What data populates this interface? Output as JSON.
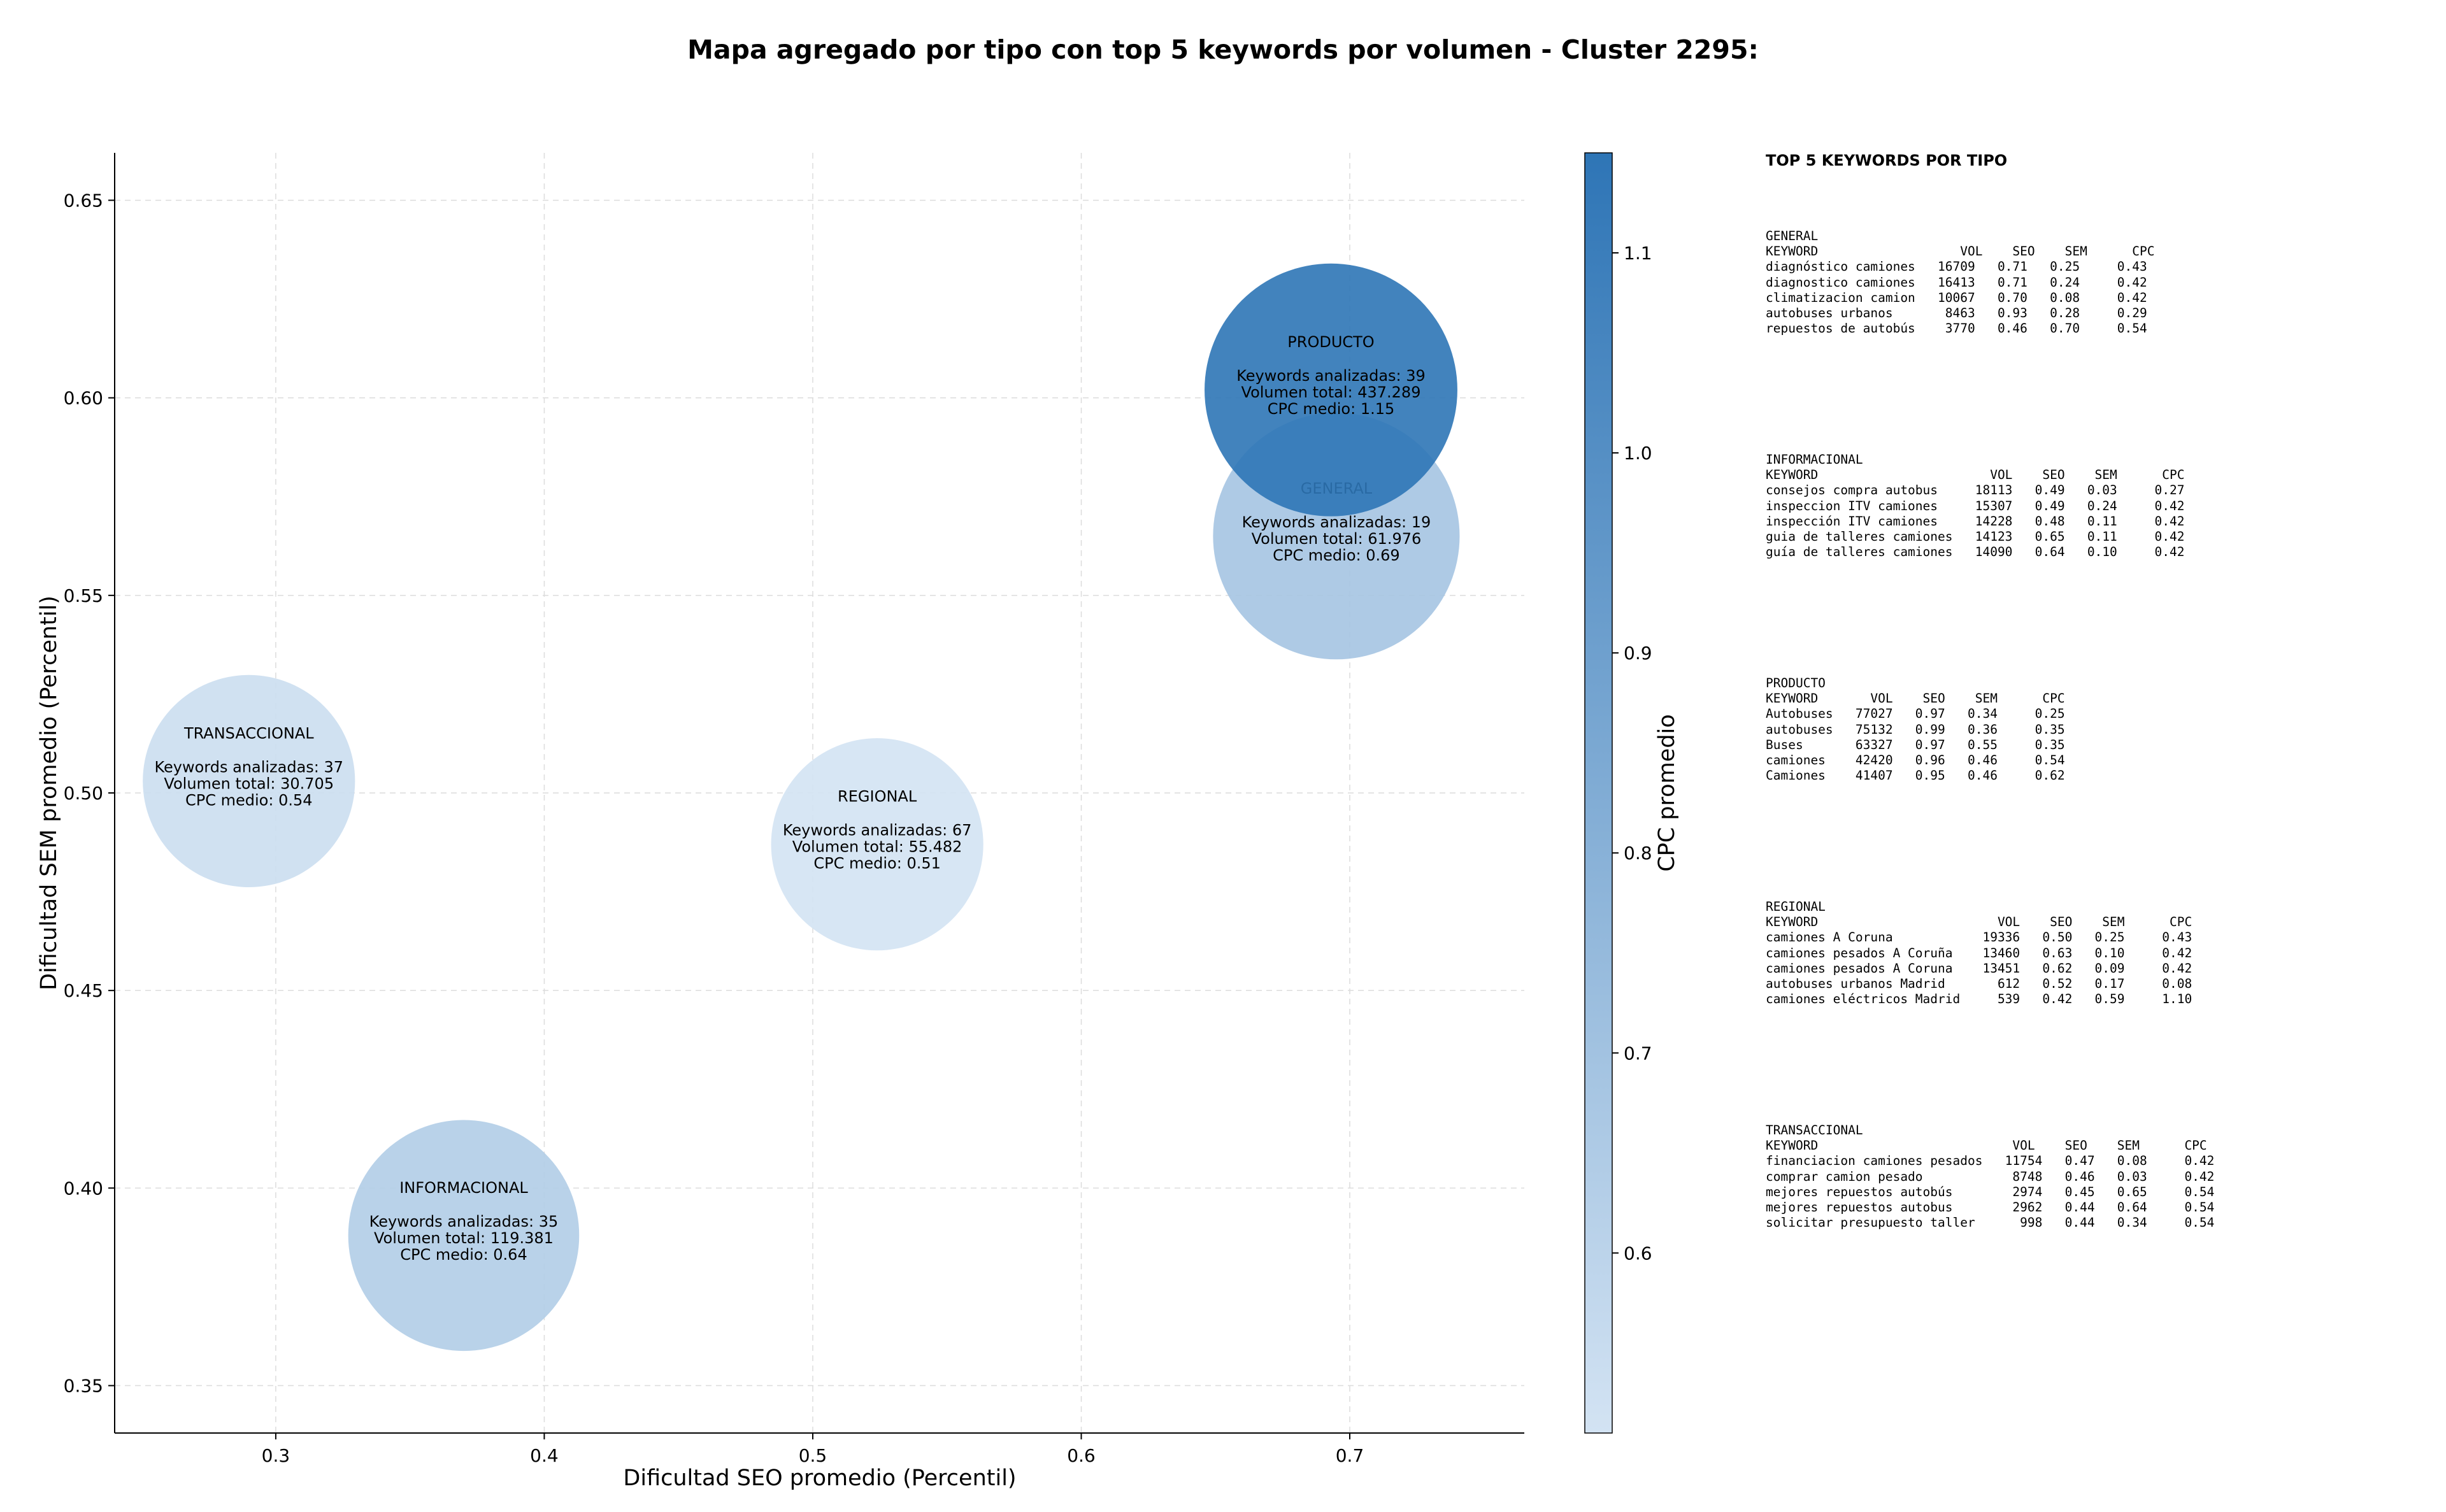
{
  "title": "Mapa agregado por tipo con top 5 keywords por volumen - Cluster 2295:",
  "chart_data": {
    "type": "scatter",
    "xlabel": "Dificultad SEO promedio (Percentil)",
    "ylabel": "Dificultad SEM promedio (Percentil)",
    "xlim": [
      0.24,
      0.765
    ],
    "ylim": [
      0.338,
      0.662
    ],
    "xticks": [
      0.3,
      0.4,
      0.5,
      0.6,
      0.7
    ],
    "yticks": [
      0.35,
      0.4,
      0.45,
      0.5,
      0.55,
      0.6,
      0.65
    ],
    "grid": true,
    "colorbar": {
      "label": "CPC promedio",
      "min": 0.51,
      "max": 1.15,
      "ticks": [
        0.6,
        0.7,
        0.8,
        0.9,
        1.0,
        1.1
      ],
      "color_low": "#d3e3f3",
      "color_high": "#2e75b6"
    },
    "points": [
      {
        "name": "INFORMACIONAL",
        "x": 0.37,
        "y": 0.388,
        "keywords_label": "Keywords analizadas: 35",
        "volume_label": "Volumen total: 119.381",
        "cpc_label": "CPC medio: 0.64",
        "cpc": 0.64,
        "size_rel": 0.74
      },
      {
        "name": "GENERAL",
        "x": 0.695,
        "y": 0.565,
        "keywords_label": "Keywords analizadas: 19",
        "volume_label": "Volumen total: 61.976",
        "cpc_label": "CPC medio: 0.69",
        "cpc": 0.69,
        "size_rel": 0.79
      },
      {
        "name": "REGIONAL",
        "x": 0.524,
        "y": 0.487,
        "keywords_label": "Keywords analizadas: 67",
        "volume_label": "Volumen total: 55.482",
        "cpc_label": "CPC medio: 0.51",
        "cpc": 0.51,
        "size_rel": 0.68
      },
      {
        "name": "TRANSACCIONAL",
        "x": 0.29,
        "y": 0.503,
        "keywords_label": "Keywords analizadas: 37",
        "volume_label": "Volumen total: 30.705",
        "cpc_label": "CPC medio: 0.54",
        "cpc": 0.54,
        "size_rel": 0.68
      },
      {
        "name": "PRODUCTO",
        "x": 0.693,
        "y": 0.602,
        "keywords_label": "Keywords analizadas: 39",
        "volume_label": "Volumen total: 437.289",
        "cpc_label": "CPC medio: 1.15",
        "cpc": 1.15,
        "size_rel": 0.81
      }
    ]
  },
  "side_panel": {
    "heading": "TOP 5 KEYWORDS POR TIPO",
    "sections": [
      {
        "name": "GENERAL",
        "rows": [
          "KEYWORD                   VOL    SEO    SEM      CPC",
          "diagnóstico camiones   16709   0.71   0.25     0.43",
          "diagnostico camiones   16413   0.71   0.24     0.42",
          "climatizacion camion   10067   0.70   0.08     0.42",
          "autobuses urbanos       8463   0.93   0.28     0.29",
          "repuestos de autobús    3770   0.46   0.70     0.54"
        ]
      },
      {
        "name": "INFORMACIONAL",
        "rows": [
          "KEYWORD                       VOL    SEO    SEM      CPC",
          "consejos compra autobus     18113   0.49   0.03     0.27",
          "inspeccion ITV camiones     15307   0.49   0.24     0.42",
          "inspección ITV camiones     14228   0.48   0.11     0.42",
          "guia de talleres camiones   14123   0.65   0.11     0.42",
          "guía de talleres camiones   14090   0.64   0.10     0.42"
        ]
      },
      {
        "name": "PRODUCTO",
        "rows": [
          "KEYWORD       VOL    SEO    SEM      CPC",
          "Autobuses   77027   0.97   0.34     0.25",
          "autobuses   75132   0.99   0.36     0.35",
          "Buses       63327   0.97   0.55     0.35",
          "camiones    42420   0.96   0.46     0.54",
          "Camiones    41407   0.95   0.46     0.62"
        ]
      },
      {
        "name": "REGIONAL",
        "rows": [
          "KEYWORD                        VOL    SEO    SEM      CPC",
          "camiones A Coruna            19336   0.50   0.25     0.43",
          "camiones pesados A Coruña    13460   0.63   0.10     0.42",
          "camiones pesados A Coruna    13451   0.62   0.09     0.42",
          "autobuses urbanos Madrid       612   0.52   0.17     0.08",
          "camiones eléctricos Madrid     539   0.42   0.59     1.10"
        ]
      },
      {
        "name": "TRANSACCIONAL",
        "rows": [
          "KEYWORD                          VOL    SEO    SEM      CPC",
          "financiacion camiones pesados   11754   0.47   0.08     0.42",
          "comprar camion pesado            8748   0.46   0.03     0.42",
          "mejores repuestos autobús        2974   0.45   0.65     0.54",
          "mejores repuestos autobus        2962   0.44   0.64     0.54",
          "solicitar presupuesto taller      998   0.44   0.34     0.54"
        ]
      }
    ]
  }
}
